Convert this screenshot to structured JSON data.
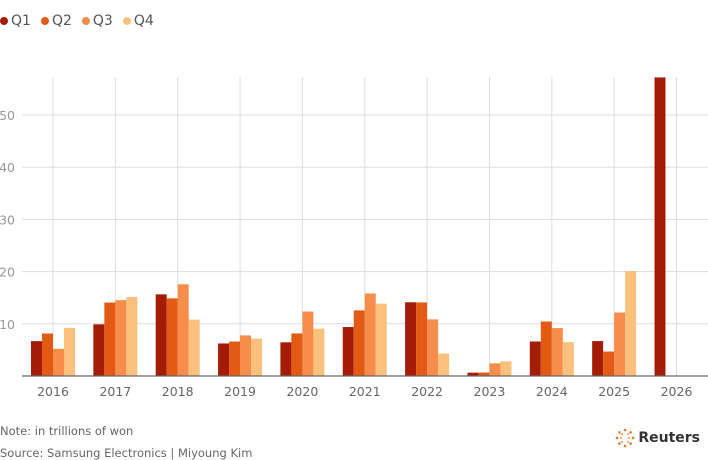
{
  "chart_data": {
    "type": "bar",
    "categories": [
      "2016",
      "2017",
      "2018",
      "2019",
      "2020",
      "2021",
      "2022",
      "2023",
      "2024",
      "2025",
      "2026"
    ],
    "series": [
      {
        "name": "Q1",
        "color": "#a51c06",
        "values": [
          6.68,
          9.9,
          15.64,
          6.23,
          6.45,
          9.38,
          14.12,
          0.64,
          6.61,
          6.69,
          57.2
        ]
      },
      {
        "name": "Q2",
        "color": "#e35a14",
        "values": [
          8.14,
          14.07,
          14.87,
          6.6,
          8.15,
          12.57,
          14.1,
          0.67,
          10.44,
          4.68,
          null
        ]
      },
      {
        "name": "Q3",
        "color": "#f78d4a",
        "values": [
          5.2,
          14.53,
          17.57,
          7.78,
          12.35,
          15.82,
          10.85,
          2.43,
          9.18,
          12.17,
          null
        ]
      },
      {
        "name": "Q4",
        "color": "#fcc07d",
        "values": [
          9.22,
          15.15,
          10.8,
          7.16,
          9.05,
          13.87,
          4.31,
          2.82,
          6.49,
          20.1,
          null
        ]
      }
    ],
    "yticks": [
      "10",
      "20",
      "30",
      "40",
      "50"
    ],
    "ylim": [
      0,
      58
    ],
    "grid": true,
    "legend": "top-left"
  },
  "footer": {
    "note": "Note: in trillions of won",
    "source": "Source: Samsung Electronics | Miyoung Kim",
    "logo": "Reuters"
  }
}
